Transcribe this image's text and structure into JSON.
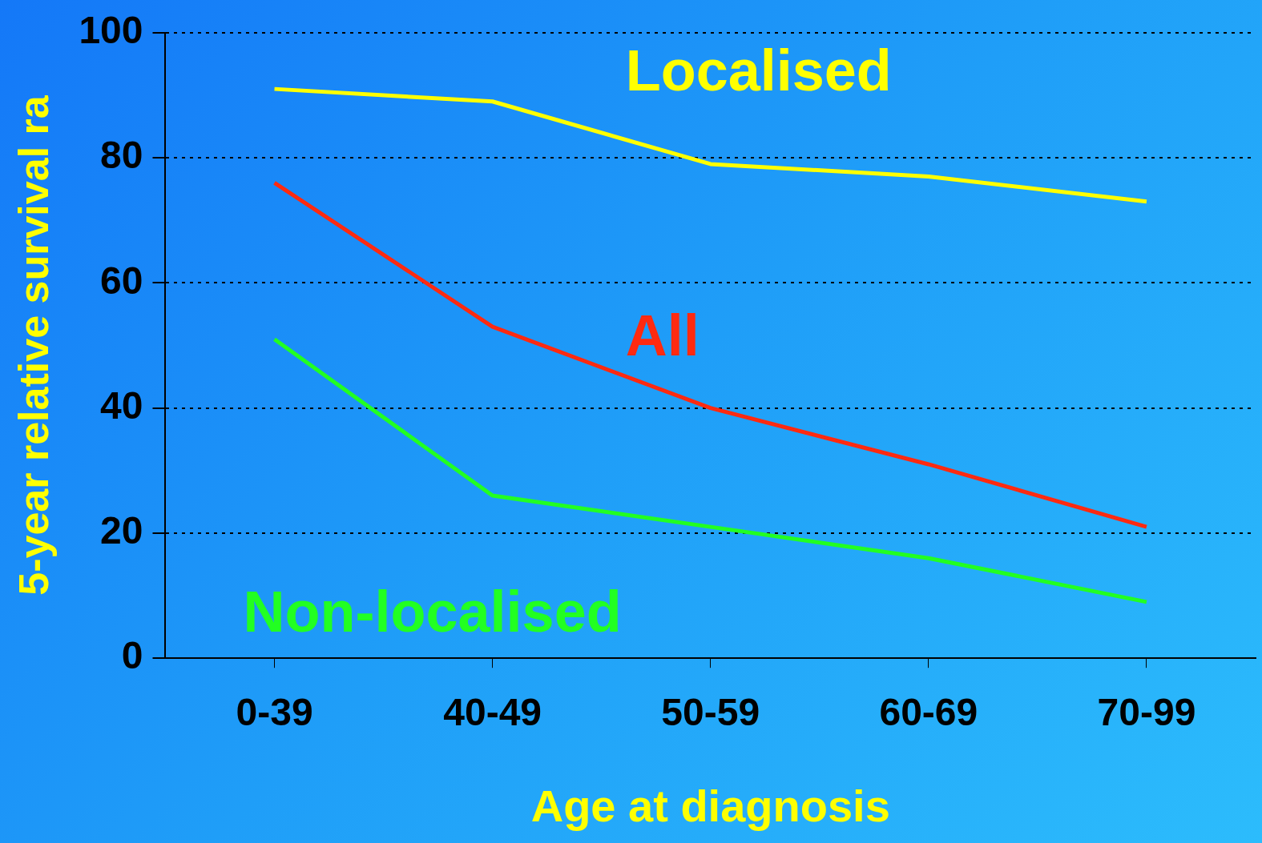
{
  "chart_data": {
    "type": "line",
    "xlabel": "Age at diagnosis",
    "ylabel": "5-year relative survival ra",
    "categories": [
      "0-39",
      "40-49",
      "50-59",
      "60-69",
      "70-99"
    ],
    "series": [
      {
        "name": "Localised",
        "color": "#ffff00",
        "values": [
          91,
          89,
          79,
          77,
          73
        ]
      },
      {
        "name": "All",
        "color": "#ff2a10",
        "values": [
          76,
          53,
          40,
          31,
          21
        ]
      },
      {
        "name": "Non-localised",
        "color": "#22ff22",
        "values": [
          51,
          26,
          21,
          16,
          9
        ]
      }
    ],
    "ylim": [
      0,
      100
    ],
    "yticks": [
      0,
      20,
      40,
      60,
      80,
      100
    ],
    "grid": "y",
    "legend": false,
    "marker": "none",
    "line_style": "solid"
  }
}
